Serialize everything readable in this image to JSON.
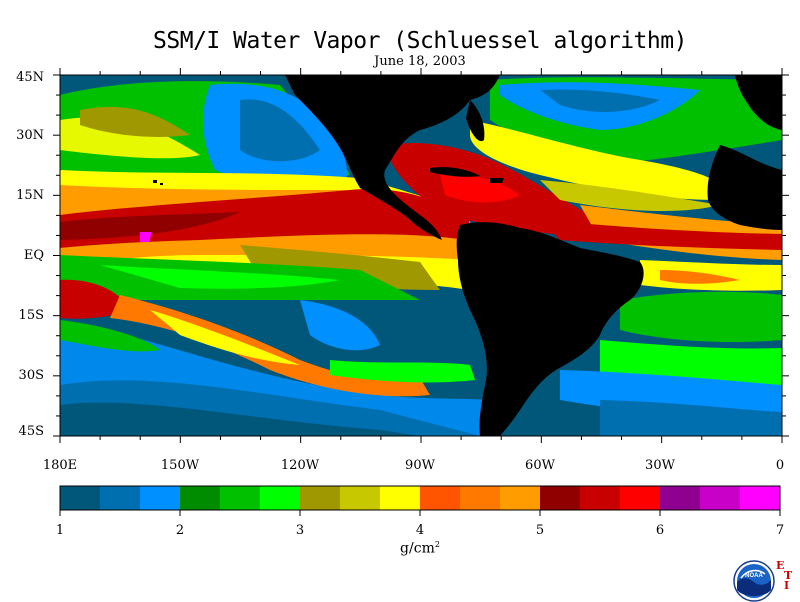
{
  "title": "SSM/I Water Vapor (Schluessel algorithm)",
  "date": "June 18, 2003",
  "y_axis_labels": [
    "45N",
    "30N",
    "15N",
    "EQ",
    "15S",
    "30S",
    "45S"
  ],
  "x_axis_labels": [
    "180E",
    "150W",
    "120W",
    "90W",
    "60W",
    "30W",
    "0"
  ],
  "colorbar": {
    "tick_labels": [
      "1",
      "2",
      "3",
      "4",
      "5",
      "6",
      "7"
    ],
    "units": "g/cm",
    "units_sup": "2",
    "colors": [
      "#00577a",
      "#006fb0",
      "#0090ff",
      "#008c00",
      "#00c000",
      "#00ff00",
      "#a09800",
      "#c8c800",
      "#ffff00",
      "#ff5400",
      "#ff7800",
      "#ff9c00",
      "#900000",
      "#c80000",
      "#ff0000",
      "#900090",
      "#c800c8",
      "#ff00ff"
    ]
  },
  "logo": {
    "text": "NOAA",
    "side_letters": [
      "E",
      "T",
      "I"
    ]
  },
  "map_colors": {
    "ocean_base": "#00577a",
    "land": "#000000"
  }
}
